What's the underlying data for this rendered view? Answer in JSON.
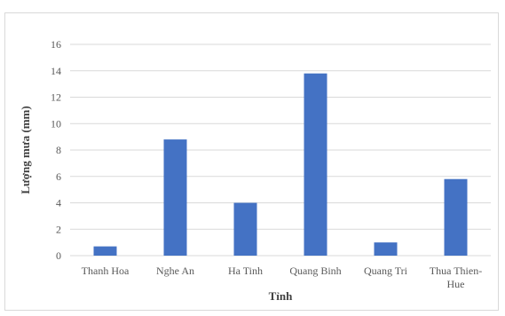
{
  "chart_data": {
    "type": "bar",
    "categories": [
      [
        "Thanh Hoa"
      ],
      [
        "Nghe An"
      ],
      [
        "Ha Tinh"
      ],
      [
        "Quang Binh"
      ],
      [
        "Quang Tri"
      ],
      [
        "Thua Thien-",
        "Hue"
      ]
    ],
    "values": [
      0.7,
      8.8,
      4.0,
      13.8,
      1.0,
      5.8
    ],
    "title": "",
    "xlabel": "Tỉnh",
    "ylabel": "Lượng mưa (mm)",
    "ylim": [
      0,
      16
    ],
    "yticks": [
      0,
      2,
      4,
      6,
      8,
      10,
      12,
      14,
      16
    ],
    "grid": true,
    "legend": "none",
    "bar_color": "#4472c4",
    "grid_color": "#d9d9d9"
  }
}
